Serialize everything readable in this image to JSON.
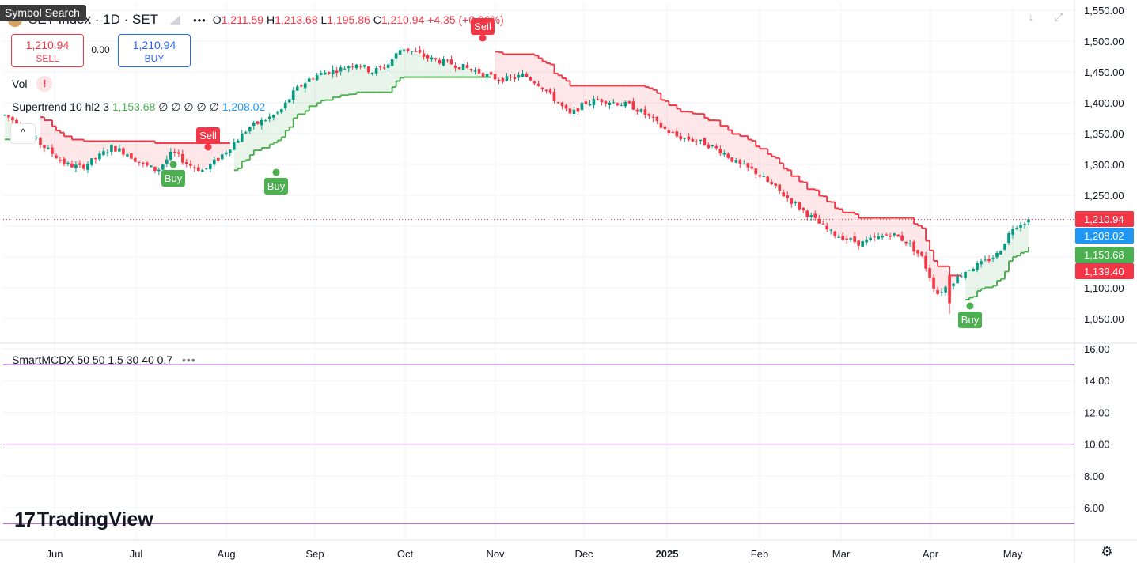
{
  "tooltip": "Symbol Search",
  "header": {
    "symbol": "SET Index · 1D · SET",
    "more_label": "•••",
    "o_label": "O",
    "o": "1,211.59",
    "h_label": "H",
    "h": "1,213.68",
    "l_label": "L",
    "l": "1,195.86",
    "c_label": "C",
    "c": "1,210.94",
    "change": "+4.35 (+0.36%)"
  },
  "trade": {
    "sell_price": "1,210.94",
    "sell_label": "SELL",
    "spread": "0.00",
    "buy_price": "1,210.94",
    "buy_label": "BUY"
  },
  "indicators": {
    "vol_label": "Vol",
    "vol_alert": "!",
    "supertrend_name": "Supertrend 10 hl2 3",
    "supertrend_up": "1,153.68",
    "supertrend_empty": "∅ ∅ ∅ ∅ ∅",
    "supertrend_down": "1,208.02",
    "collapse_icon": "^",
    "smcdx_name": "SmartMCDX 50 50 1.5 30 40 0.7",
    "smcdx_dots": "•••"
  },
  "price_axis": {
    "labels": [
      "1,550.00",
      "1,500.00",
      "1,450.00",
      "1,400.00",
      "1,350.00",
      "1,300.00",
      "1,250.00",
      "1,150.00",
      "1,100.00",
      "1,050.00"
    ],
    "badges": [
      {
        "text": "1,210.94",
        "color": "#f23645"
      },
      {
        "text": "1,208.02",
        "color": "#2196f3"
      },
      {
        "text": "1,153.68",
        "color": "#4caf50"
      },
      {
        "text": "1,139.40",
        "color": "#f23645"
      }
    ]
  },
  "osc_axis": {
    "labels": [
      "16.00",
      "14.00",
      "12.00",
      "10.00",
      "8.00",
      "6.00"
    ]
  },
  "time_axis": {
    "labels": [
      "Jun",
      "Jul",
      "Aug",
      "Sep",
      "Oct",
      "Nov",
      "Dec",
      "2025",
      "Feb",
      "Mar",
      "Apr",
      "May"
    ]
  },
  "signals": [
    "Sell",
    "Buy",
    "Buy",
    "Sell",
    "Buy"
  ],
  "colors": {
    "up": "#089981",
    "down": "#f23645",
    "st_up": "#4caf50",
    "st_down": "#f23645",
    "osc_line": "#7b1fa2"
  },
  "chart_data": {
    "type": "candlestick",
    "ylim": [
      1010,
      1560
    ],
    "series": [
      {
        "name": "close (approx. weekly, Jun 2024 – May 2025)",
        "values": [
          1380,
          1365,
          1340,
          1320,
          1300,
          1295,
          1310,
          1328,
          1318,
          1300,
          1290,
          1320,
          1300,
          1290,
          1310,
          1335,
          1360,
          1372,
          1385,
          1420,
          1440,
          1450,
          1455,
          1465,
          1450,
          1460,
          1490,
          1480,
          1470,
          1465,
          1458,
          1450,
          1440,
          1438,
          1445,
          1430,
          1405,
          1380,
          1400,
          1405,
          1400,
          1395,
          1380,
          1360,
          1345,
          1340,
          1332,
          1320,
          1300,
          1290,
          1270,
          1250,
          1230,
          1210,
          1190,
          1180,
          1172,
          1180,
          1188,
          1175,
          1150,
          1090,
          1110,
          1130,
          1140,
          1155,
          1200,
          1210
        ]
      },
      {
        "name": "Supertrend",
        "values": [
          1153.68,
          1208.02
        ]
      }
    ],
    "osc_levels": [
      15,
      10,
      5
    ]
  },
  "logo": {
    "mark": "17",
    "text": "TradingView"
  },
  "icons": {
    "download": "download-icon",
    "fullscreen": "fullscreen-icon",
    "settings": "settings-icon"
  }
}
